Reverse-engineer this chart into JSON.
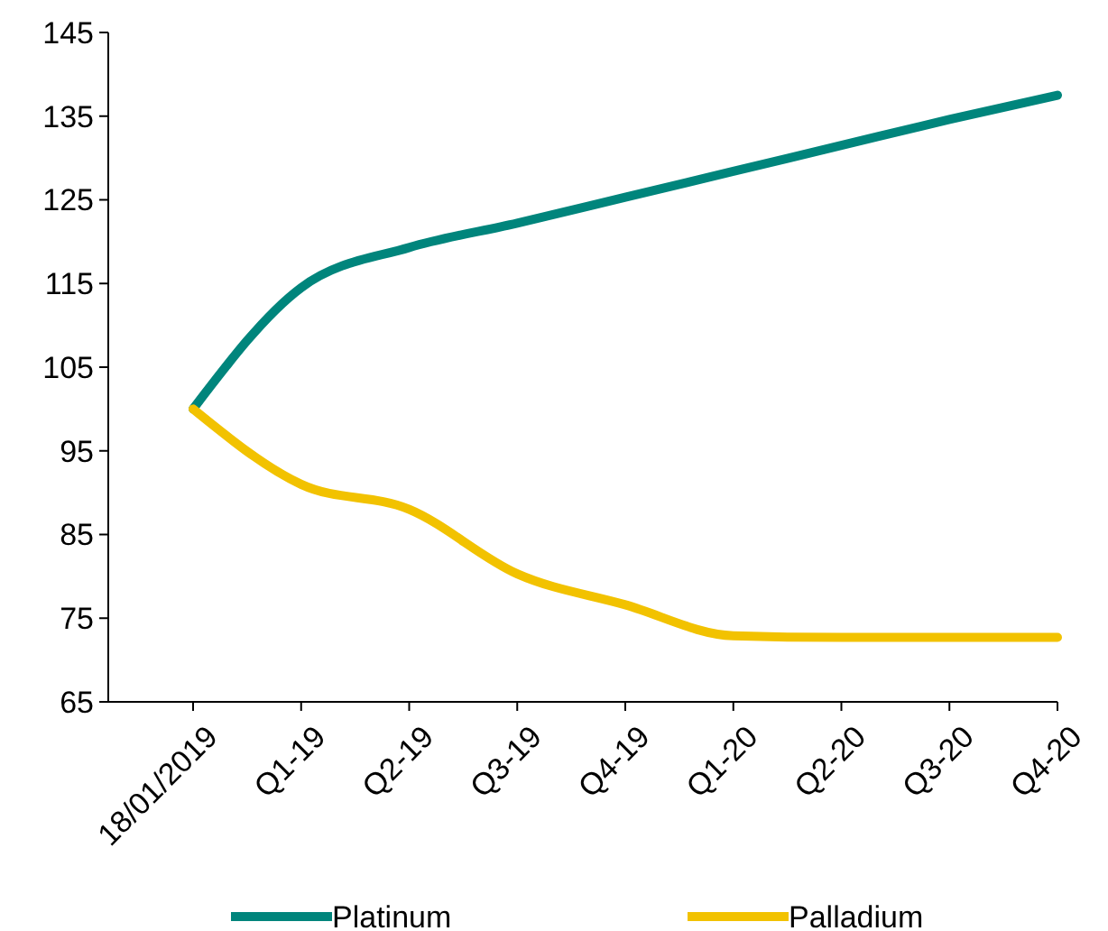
{
  "chart_data": {
    "type": "line",
    "categories": [
      "18/01/2019",
      "Q1-19",
      "Q2-19",
      "Q3-19",
      "Q4-19",
      "Q1-20",
      "Q2-20",
      "Q3-20",
      "Q4-20"
    ],
    "series": [
      {
        "name": "Platinum",
        "color": "#00857c",
        "values": [
          100,
          114.5,
          119.3,
          122.2,
          125.3,
          128.4,
          131.5,
          134.6,
          137.5
        ]
      },
      {
        "name": "Palladium",
        "color": "#f2c200",
        "values": [
          100,
          91,
          88,
          80.3,
          76.6,
          72.9,
          72.7,
          72.7,
          72.7
        ]
      }
    ],
    "ylim": [
      65,
      145
    ],
    "yticks": [
      65,
      75,
      85,
      95,
      105,
      115,
      125,
      135,
      145
    ],
    "grid": false,
    "legend": "bottom",
    "marker": "none",
    "line_style": "solid"
  }
}
